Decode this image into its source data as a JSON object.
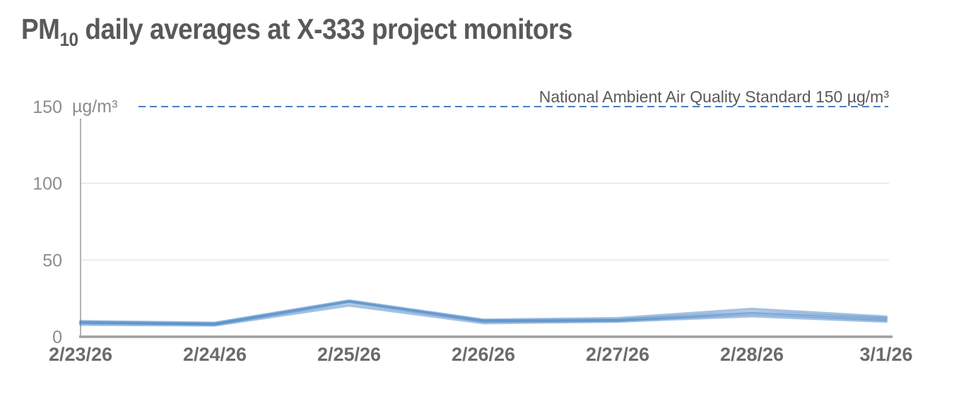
{
  "title": {
    "prefix": "PM",
    "subscript": "10",
    "rest": " daily averages at X-333 project monitors"
  },
  "chart_data": {
    "type": "line",
    "x": [
      "2/23/26",
      "2/24/26",
      "2/25/26",
      "2/26/26",
      "2/27/26",
      "2/28/26",
      "3/1/26"
    ],
    "series": [
      {
        "values": [
          10,
          9,
          23.5,
          11,
          12,
          18,
          13
        ]
      },
      {
        "values": [
          9.5,
          8.5,
          23,
          10.5,
          11,
          16,
          12
        ]
      },
      {
        "values": [
          9,
          8,
          22.5,
          10,
          10.5,
          15,
          11
        ]
      },
      {
        "values": [
          8,
          7.5,
          20.5,
          9,
          10,
          13.5,
          10
        ]
      }
    ],
    "title": "PM10 daily averages at X-333 project monitors",
    "xlabel": "",
    "ylabel": "µg/m³",
    "ylim": [
      0,
      150
    ],
    "yticks": [
      0,
      50,
      100,
      150
    ],
    "ytick_labels": [
      "0",
      "50",
      "100",
      "150"
    ],
    "y_unit": "µg/m³",
    "gridlines": [
      50,
      100
    ],
    "grid": true,
    "legend": "none",
    "reference_line": {
      "value": 150,
      "label": "National Ambient Air Quality Standard 150 µg/m³",
      "style": "dashed"
    },
    "colors": {
      "series": "#4a86c5",
      "reference": "#4a7ebf",
      "title_text": "#595959",
      "label_text": "#595959",
      "axis_text": "#8c8c8c",
      "date_text": "#6b6b6b",
      "y_axis_line": "#b3b3b3",
      "x_axis_line": "#9e9e9e",
      "gridline": "#e5e5e5"
    }
  }
}
